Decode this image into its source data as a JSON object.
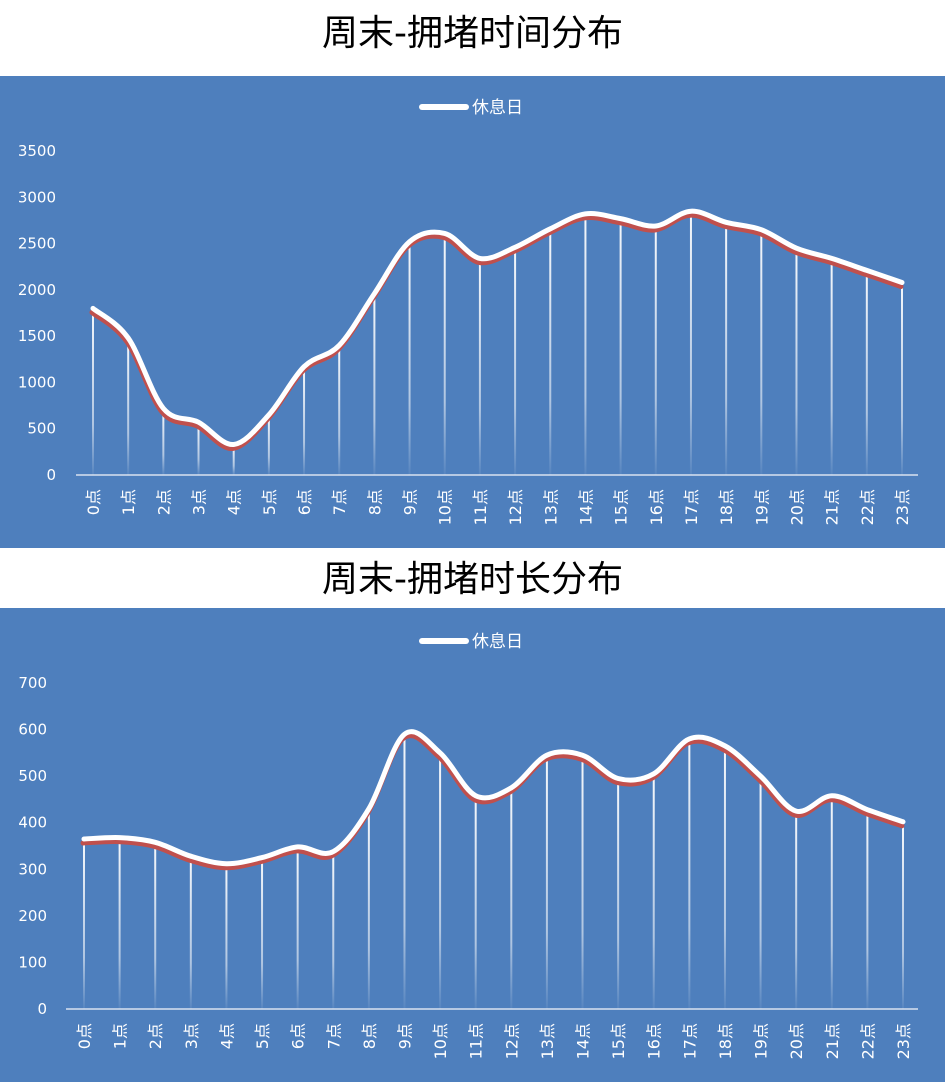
{
  "chart_data": [
    {
      "type": "line",
      "title": "周末-拥堵时间分布",
      "categories": [
        "0点",
        "1点",
        "2点",
        "3点",
        "4点",
        "5点",
        "6点",
        "7点",
        "8点",
        "9点",
        "10点",
        "11点",
        "12点",
        "13点",
        "14点",
        "15点",
        "16点",
        "17点",
        "18点",
        "19点",
        "20点",
        "21点",
        "22点",
        "23点"
      ],
      "series": [
        {
          "name": "休息日",
          "values": [
            1800,
            1480,
            720,
            570,
            330,
            650,
            1170,
            1400,
            1960,
            2520,
            2610,
            2340,
            2460,
            2660,
            2820,
            2770,
            2690,
            2850,
            2730,
            2650,
            2450,
            2340,
            2210,
            2080
          ]
        }
      ],
      "ylim": [
        0,
        3500
      ],
      "yticks": [
        "0",
        "500",
        "1000",
        "1500",
        "2000",
        "2500",
        "3000",
        "3500"
      ],
      "grid": false,
      "legend": "top-center",
      "colors": {
        "background": "#4e7fbd",
        "line": "#ffffff",
        "shadow": "#c0504d",
        "text": "#ffffff"
      }
    },
    {
      "type": "line",
      "title": "周末-拥堵时长分布",
      "categories": [
        "0点",
        "1点",
        "2点",
        "3点",
        "4点",
        "5点",
        "6点",
        "7点",
        "8点",
        "9点",
        "10点",
        "11点",
        "12点",
        "13点",
        "14点",
        "15点",
        "16点",
        "17点",
        "18点",
        "19点",
        "20点",
        "21点",
        "22点",
        "23点"
      ],
      "series": [
        {
          "name": "休息日",
          "values": [
            365,
            368,
            358,
            328,
            312,
            325,
            348,
            338,
            430,
            590,
            550,
            458,
            475,
            545,
            545,
            495,
            505,
            580,
            565,
            500,
            425,
            458,
            428,
            402
          ]
        }
      ],
      "ylim": [
        0,
        700
      ],
      "yticks": [
        "0",
        "100",
        "200",
        "300",
        "400",
        "500",
        "600",
        "700"
      ],
      "grid": false,
      "legend": "top-center",
      "colors": {
        "background": "#4e7fbd",
        "line": "#ffffff",
        "shadow": "#c0504d",
        "text": "#ffffff"
      }
    }
  ]
}
